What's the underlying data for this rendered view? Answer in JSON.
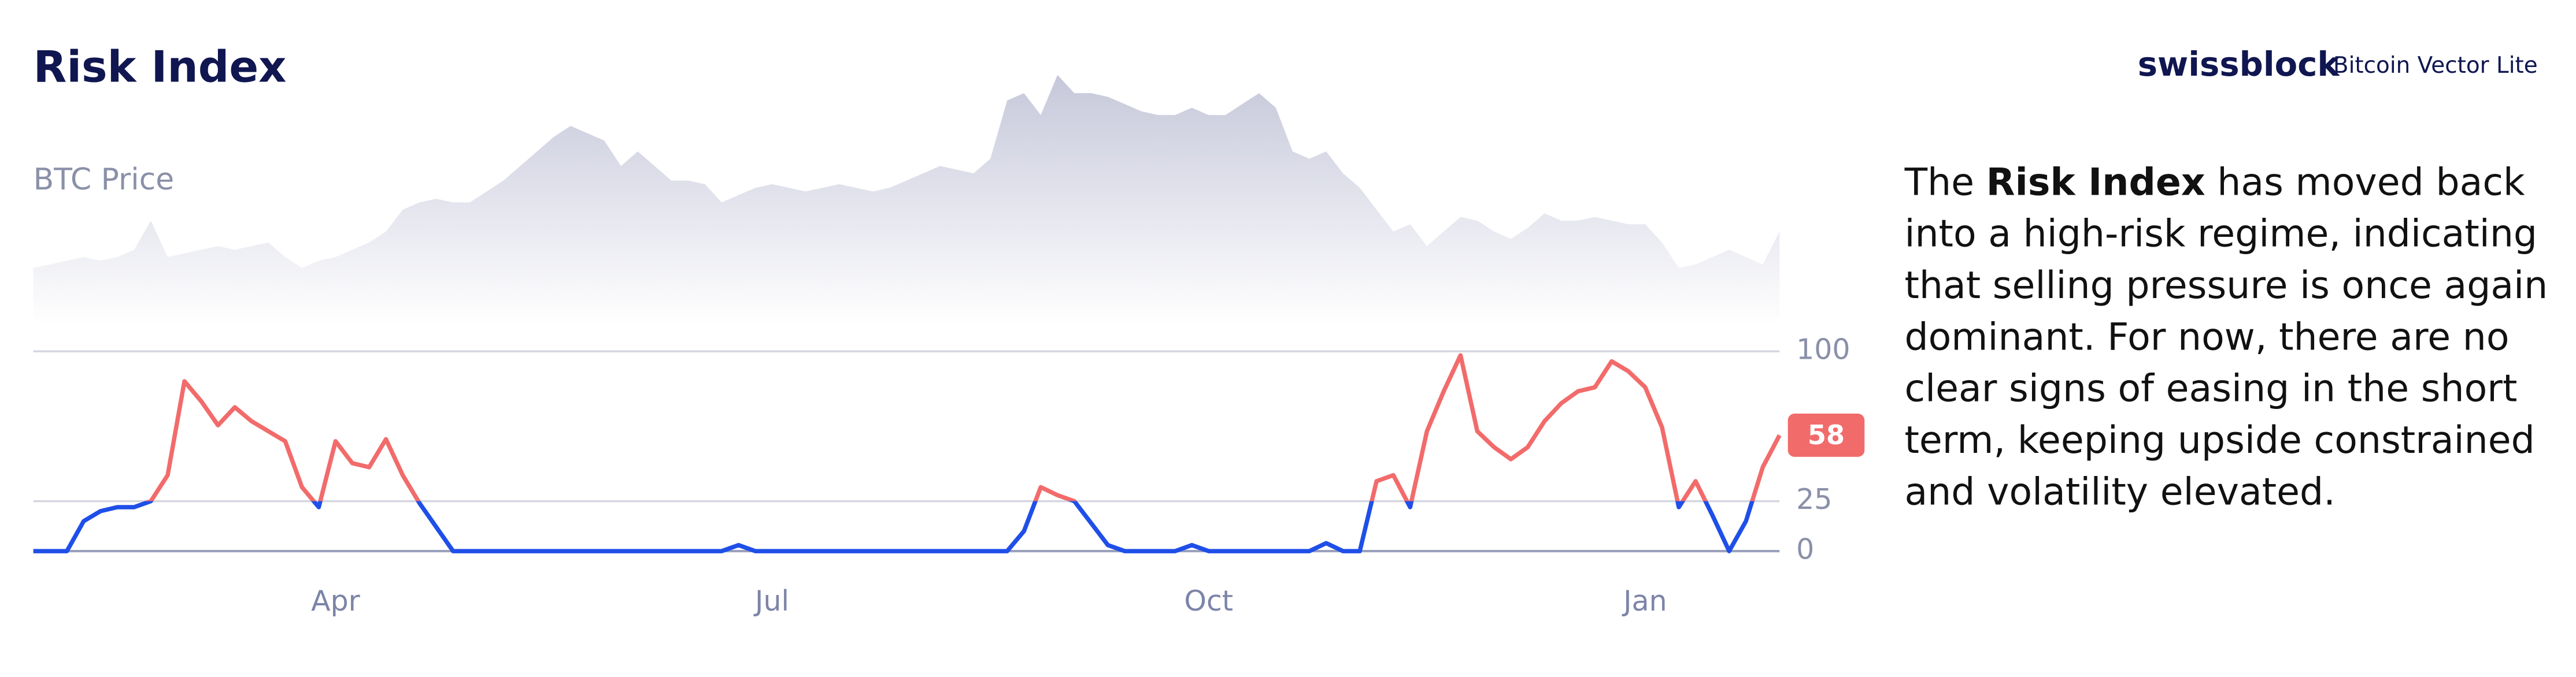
{
  "chart_data": {
    "type": "line",
    "title": "Risk Index",
    "brand": "swissblock",
    "product": "Bitcoin Vector Lite",
    "categories": [
      null,
      null,
      null,
      null,
      null,
      null,
      null,
      null,
      null,
      null,
      null,
      null,
      null,
      null,
      null,
      null,
      null,
      null,
      "Apr",
      null,
      null,
      null,
      null,
      null,
      null,
      null,
      null,
      null,
      null,
      null,
      null,
      null,
      null,
      null,
      null,
      null,
      null,
      null,
      null,
      null,
      null,
      null,
      null,
      null,
      "Jul",
      null,
      null,
      null,
      null,
      null,
      null,
      null,
      null,
      null,
      null,
      null,
      null,
      null,
      null,
      null,
      null,
      null,
      null,
      null,
      null,
      null,
      null,
      null,
      null,
      null,
      "Oct",
      null,
      null,
      null,
      null,
      null,
      null,
      null,
      null,
      null,
      null,
      null,
      null,
      null,
      null,
      null,
      null,
      null,
      null,
      null,
      null,
      null,
      null,
      null,
      null,
      null,
      "Jan",
      null,
      null,
      null,
      null,
      null,
      null,
      null,
      null
    ],
    "series": [
      {
        "values": [
          0,
          0,
          0,
          15,
          20,
          22,
          22,
          25,
          38,
          85,
          75,
          63,
          72,
          65,
          60,
          55,
          32,
          22,
          55,
          44,
          42,
          56,
          38,
          24,
          12,
          0,
          0,
          0,
          0,
          0,
          0,
          0,
          0,
          0,
          0,
          0,
          0,
          0,
          0,
          0,
          0,
          0,
          3,
          0,
          0,
          0,
          0,
          0,
          0,
          0,
          0,
          0,
          0,
          0,
          0,
          0,
          0,
          0,
          0,
          10,
          32,
          28,
          25,
          14,
          3,
          0,
          0,
          0,
          0,
          3,
          0,
          0,
          0,
          0,
          0,
          0,
          0,
          4,
          0,
          0,
          35,
          38,
          22,
          60,
          80,
          98,
          60,
          52,
          46,
          52,
          65,
          74,
          80,
          82,
          95,
          90,
          82,
          62,
          22,
          35,
          18,
          0,
          15,
          42,
          58
        ],
        "color_above": "#f26b6b",
        "color_below": "#1f4fe8"
      }
    ],
    "threshold": 25,
    "ylim": [
      0,
      100
    ],
    "yticks": [
      0,
      25,
      100
    ],
    "grid": true,
    "price": {
      "name": "BTC Price",
      "color": "#c6c8da",
      "ylim": [
        60000,
        124000
      ],
      "values": [
        71000,
        72000,
        73000,
        74000,
        73000,
        74000,
        76000,
        84000,
        74000,
        75000,
        76000,
        77000,
        76000,
        77000,
        78000,
        74000,
        71000,
        73000,
        74000,
        76000,
        78000,
        81000,
        87000,
        89000,
        90000,
        89000,
        89000,
        92000,
        95000,
        99000,
        103000,
        107000,
        110000,
        108000,
        106000,
        99000,
        103000,
        99000,
        95000,
        95000,
        94000,
        89000,
        91000,
        93000,
        94000,
        93000,
        92000,
        93000,
        94000,
        93000,
        92000,
        93000,
        95000,
        97000,
        99000,
        98000,
        97000,
        101000,
        117000,
        119000,
        113000,
        124000,
        119000,
        119000,
        118000,
        116000,
        114000,
        113000,
        113000,
        115000,
        113000,
        113000,
        116000,
        119000,
        115000,
        103000,
        101000,
        103000,
        97000,
        93000,
        87000,
        81000,
        83000,
        77000,
        81000,
        85000,
        84000,
        81000,
        79000,
        82000,
        86000,
        84000,
        84000,
        85000,
        84000,
        83000,
        83000,
        78000,
        71000,
        72000,
        74000,
        76000,
        74000,
        72000,
        81000
      ]
    },
    "annotation": {
      "before": "The ",
      "bold": "Risk Index",
      "after": " has moved back into a high-risk regime, indicating that selling pressure is once again dominant. For now, there are no clear signs of easing in the short term, keeping upside constrained and volatility elevated."
    }
  }
}
